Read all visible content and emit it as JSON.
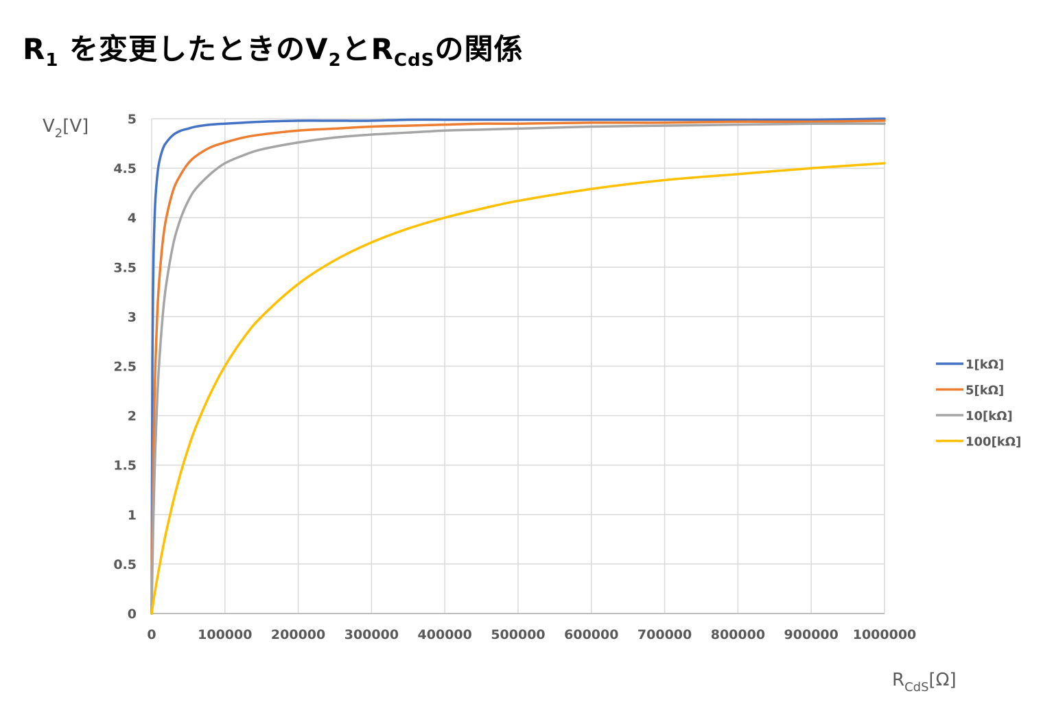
{
  "title": {
    "parts": [
      "R",
      "1",
      " を変更したときのV",
      "2",
      "とR",
      "CdS",
      "の関係"
    ]
  },
  "chart_data": {
    "type": "line",
    "title": "R1 を変更したときのV2とRCdSの関係",
    "xlabel": "RCdS[Ω]",
    "xlabel_parts": [
      "R",
      "CdS",
      "[Ω]"
    ],
    "ylabel": "V2[V]",
    "ylabel_parts": [
      "V",
      "2",
      "[V]"
    ],
    "xlim": [
      0,
      1000000
    ],
    "ylim": [
      0,
      5
    ],
    "xticks": [
      0,
      100000,
      200000,
      300000,
      400000,
      500000,
      600000,
      700000,
      800000,
      900000,
      1000000
    ],
    "xtick_labels": [
      "0",
      "100000",
      "200000",
      "300000",
      "400000",
      "500000",
      "600000",
      "700000",
      "800000",
      "900000",
      "1000000"
    ],
    "yticks": [
      0,
      0.5,
      1,
      1.5,
      2,
      2.5,
      3,
      3.5,
      4,
      4.5,
      5
    ],
    "ytick_labels": [
      "0",
      "0.5",
      "1",
      "1.5",
      "2",
      "2.5",
      "3",
      "3.5",
      "4",
      "4.5",
      "5"
    ],
    "grid": true,
    "legend_position": "right",
    "x": [
      0,
      1000,
      2000,
      3000,
      5000,
      7500,
      10000,
      15000,
      20000,
      30000,
      40000,
      50000,
      60000,
      80000,
      100000,
      125000,
      150000,
      200000,
      250000,
      300000,
      350000,
      400000,
      450000,
      500000,
      600000,
      700000,
      800000,
      900000,
      1000000
    ],
    "series": [
      {
        "name": "1[kΩ]",
        "color": "#4472C4",
        "values": [
          0,
          2.5,
          3.33,
          3.75,
          4.17,
          4.41,
          4.55,
          4.69,
          4.76,
          4.84,
          4.88,
          4.9,
          4.92,
          4.94,
          4.95,
          4.96,
          4.97,
          4.98,
          4.98,
          4.98,
          4.99,
          4.99,
          4.99,
          4.99,
          4.99,
          4.99,
          4.99,
          4.99,
          5.0
        ]
      },
      {
        "name": "5[kΩ]",
        "color": "#ED7D31",
        "values": [
          0,
          0.83,
          1.43,
          1.88,
          2.5,
          3.0,
          3.33,
          3.75,
          4.0,
          4.29,
          4.44,
          4.55,
          4.62,
          4.71,
          4.76,
          4.81,
          4.84,
          4.88,
          4.9,
          4.92,
          4.93,
          4.94,
          4.95,
          4.95,
          4.96,
          4.96,
          4.97,
          4.97,
          4.98
        ]
      },
      {
        "name": "10[kΩ]",
        "color": "#A5A5A5",
        "values": [
          0,
          0.45,
          0.83,
          1.15,
          1.67,
          2.14,
          2.5,
          3.0,
          3.33,
          3.75,
          4.0,
          4.17,
          4.29,
          4.44,
          4.55,
          4.63,
          4.69,
          4.76,
          4.81,
          4.84,
          4.86,
          4.88,
          4.89,
          4.9,
          4.92,
          4.93,
          4.94,
          4.95,
          4.95
        ]
      },
      {
        "name": "100[kΩ]",
        "color": "#FFC000",
        "values": [
          0,
          0.05,
          0.1,
          0.15,
          0.24,
          0.35,
          0.45,
          0.65,
          0.83,
          1.15,
          1.43,
          1.67,
          1.88,
          2.22,
          2.5,
          2.78,
          3.0,
          3.33,
          3.57,
          3.75,
          3.89,
          4.0,
          4.09,
          4.17,
          4.29,
          4.38,
          4.44,
          4.5,
          4.55
        ]
      }
    ]
  }
}
